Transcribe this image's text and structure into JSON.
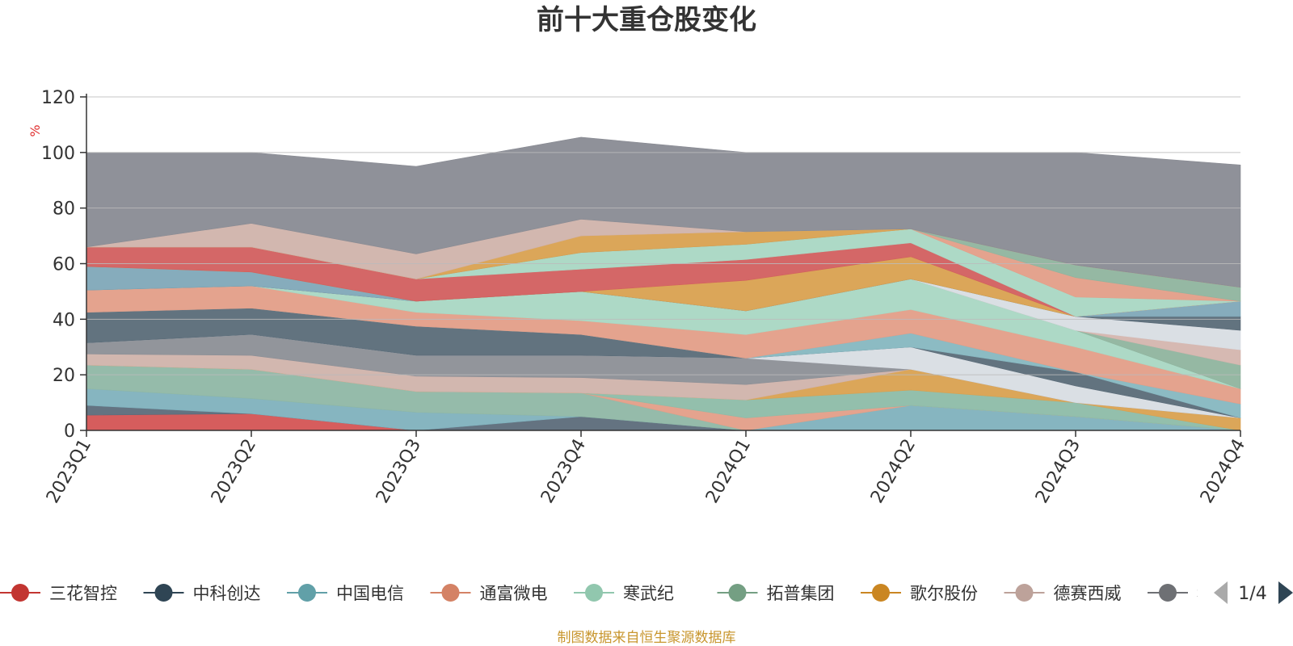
{
  "chart_data": {
    "type": "area",
    "stacked": true,
    "title": "前十大重仓股变化",
    "ylabel": "%",
    "ylim": [
      0,
      120
    ],
    "yticks": [
      0,
      20,
      40,
      60,
      80,
      100,
      120
    ],
    "grid": true,
    "categories": [
      "2023Q1",
      "2023Q2",
      "2023Q3",
      "2023Q4",
      "2024Q1",
      "2024Q2",
      "2024Q3",
      "2024Q4"
    ],
    "series": [
      {
        "name": "三花智控",
        "color": "#d45454",
        "values": [
          5.5,
          6.0,
          0,
          0,
          0,
          0,
          0,
          0
        ]
      },
      {
        "name": "",
        "color": "#5c6b7a",
        "values": [
          3.5,
          0,
          0,
          5.0,
          0,
          0,
          0,
          0
        ]
      },
      {
        "name": "中国电信",
        "color": "#7fb1bd",
        "values": [
          6.0,
          5.5,
          6.5,
          0,
          0,
          9.0,
          5.0,
          0
        ]
      },
      {
        "name": "",
        "color": "#8fb7a5",
        "values": [
          8.5,
          10.5,
          7.5,
          8.5,
          0,
          0,
          0,
          0
        ]
      },
      {
        "name": "通富微电",
        "color": "#e39e88",
        "values": [
          0,
          0,
          0,
          0,
          4.5,
          0,
          0,
          0
        ]
      },
      {
        "name": "",
        "color": "#8dbca8",
        "values": [
          0,
          0,
          0,
          0,
          6.5,
          5.5,
          5.0,
          0
        ]
      },
      {
        "name": "歌尔股份",
        "color": "#d9a150",
        "values": [
          0,
          0,
          0,
          0,
          0,
          7.5,
          0,
          4.5
        ]
      },
      {
        "name": "",
        "color": "#d0b3ab",
        "values": [
          4.0,
          5.0,
          5.5,
          5.5,
          5.5,
          0,
          0,
          0
        ]
      },
      {
        "name": "",
        "color": "#8c8f96",
        "values": [
          4.0,
          7.5,
          7.5,
          8.0,
          9.5,
          0,
          0,
          0
        ]
      },
      {
        "name": "",
        "color": "#d8dde3",
        "values": [
          0,
          0,
          0,
          0,
          0,
          8.0,
          6.0,
          0
        ]
      },
      {
        "name": "中科创达",
        "color": "#5a6b78",
        "values": [
          11.0,
          9.5,
          10.5,
          7.5,
          0,
          0,
          5.0,
          0
        ]
      },
      {
        "name": "",
        "color": "#86b7c0",
        "values": [
          0,
          0,
          0,
          0,
          0,
          5.0,
          0,
          5.0
        ]
      },
      {
        "name": "",
        "color": "#e39e88",
        "values": [
          8.0,
          8.0,
          5.0,
          5.0,
          8.5,
          8.5,
          9.0,
          5.5
        ]
      },
      {
        "name": "寒武纪",
        "color": "#a9d7c3",
        "values": [
          0,
          0,
          4.0,
          10.5,
          8.5,
          11.0,
          6.0,
          0
        ]
      },
      {
        "name": "拓普集团",
        "color": "#8fb49e",
        "values": [
          0,
          0,
          0,
          0,
          0,
          0,
          0,
          8.5
        ]
      },
      {
        "name": "",
        "color": "#d4b5ae",
        "values": [
          0,
          0,
          0,
          0,
          0,
          0,
          0,
          5.5
        ]
      },
      {
        "name": "",
        "color": "#d8dde3",
        "values": [
          0,
          0,
          0,
          0,
          0,
          0,
          5.0,
          7.0
        ]
      },
      {
        "name": "",
        "color": "#5a6b78",
        "values": [
          0,
          0,
          0,
          0,
          0,
          0,
          0,
          5.0
        ]
      },
      {
        "name": "",
        "color": "#7fa8b8",
        "values": [
          8.5,
          5.0,
          0,
          0,
          0,
          0,
          0,
          5.5
        ]
      },
      {
        "name": "",
        "color": "#d9a150",
        "values": [
          0,
          0,
          0,
          0,
          11.0,
          8.0,
          0,
          0
        ]
      },
      {
        "name": "",
        "color": "#d25f5f",
        "values": [
          7.0,
          9.0,
          8.0,
          8.0,
          7.5,
          5.0,
          0,
          0
        ]
      },
      {
        "name": "",
        "color": "#a9d7c3",
        "values": [
          0,
          0,
          0,
          6.0,
          5.5,
          5.0,
          7.0,
          0
        ]
      },
      {
        "name": "",
        "color": "#e39e88",
        "values": [
          0,
          0,
          0,
          0,
          0,
          0,
          7.0,
          0
        ]
      },
      {
        "name": "",
        "color": "#8fb49e",
        "values": [
          0,
          0,
          0,
          0,
          0,
          0,
          4.5,
          5.0
        ]
      },
      {
        "name": "",
        "color": "#d9a150",
        "values": [
          0,
          0,
          0,
          6.0,
          4.5,
          0,
          0,
          0
        ]
      },
      {
        "name": "德赛西威",
        "color": "#d0b3ab",
        "values": [
          0,
          8.5,
          9.0,
          6.0,
          0,
          0,
          0,
          0
        ]
      },
      {
        "name": "",
        "color": "#898b93",
        "values": [
          34.0,
          25.5,
          31.5,
          29.5,
          28.5,
          27.5,
          40.5,
          44.0
        ]
      }
    ]
  },
  "legend": {
    "items": [
      {
        "label": "三花智控",
        "color": "#c23531"
      },
      {
        "label": "中科创达",
        "color": "#2f4554"
      },
      {
        "label": "中国电信",
        "color": "#61a0a8"
      },
      {
        "label": "通富微电",
        "color": "#d48265"
      },
      {
        "label": "寒武纪",
        "color": "#91c7ae"
      },
      {
        "label": "拓普集团",
        "color": "#749f83"
      },
      {
        "label": "歌尔股份",
        "color": "#ca8622"
      },
      {
        "label": "德赛西威",
        "color": "#bda29a"
      },
      {
        "label": "科大",
        "color": "#6e7074"
      }
    ],
    "page": "1/4"
  },
  "footer": {
    "source": "制图数据来自恒生聚源数据库"
  }
}
